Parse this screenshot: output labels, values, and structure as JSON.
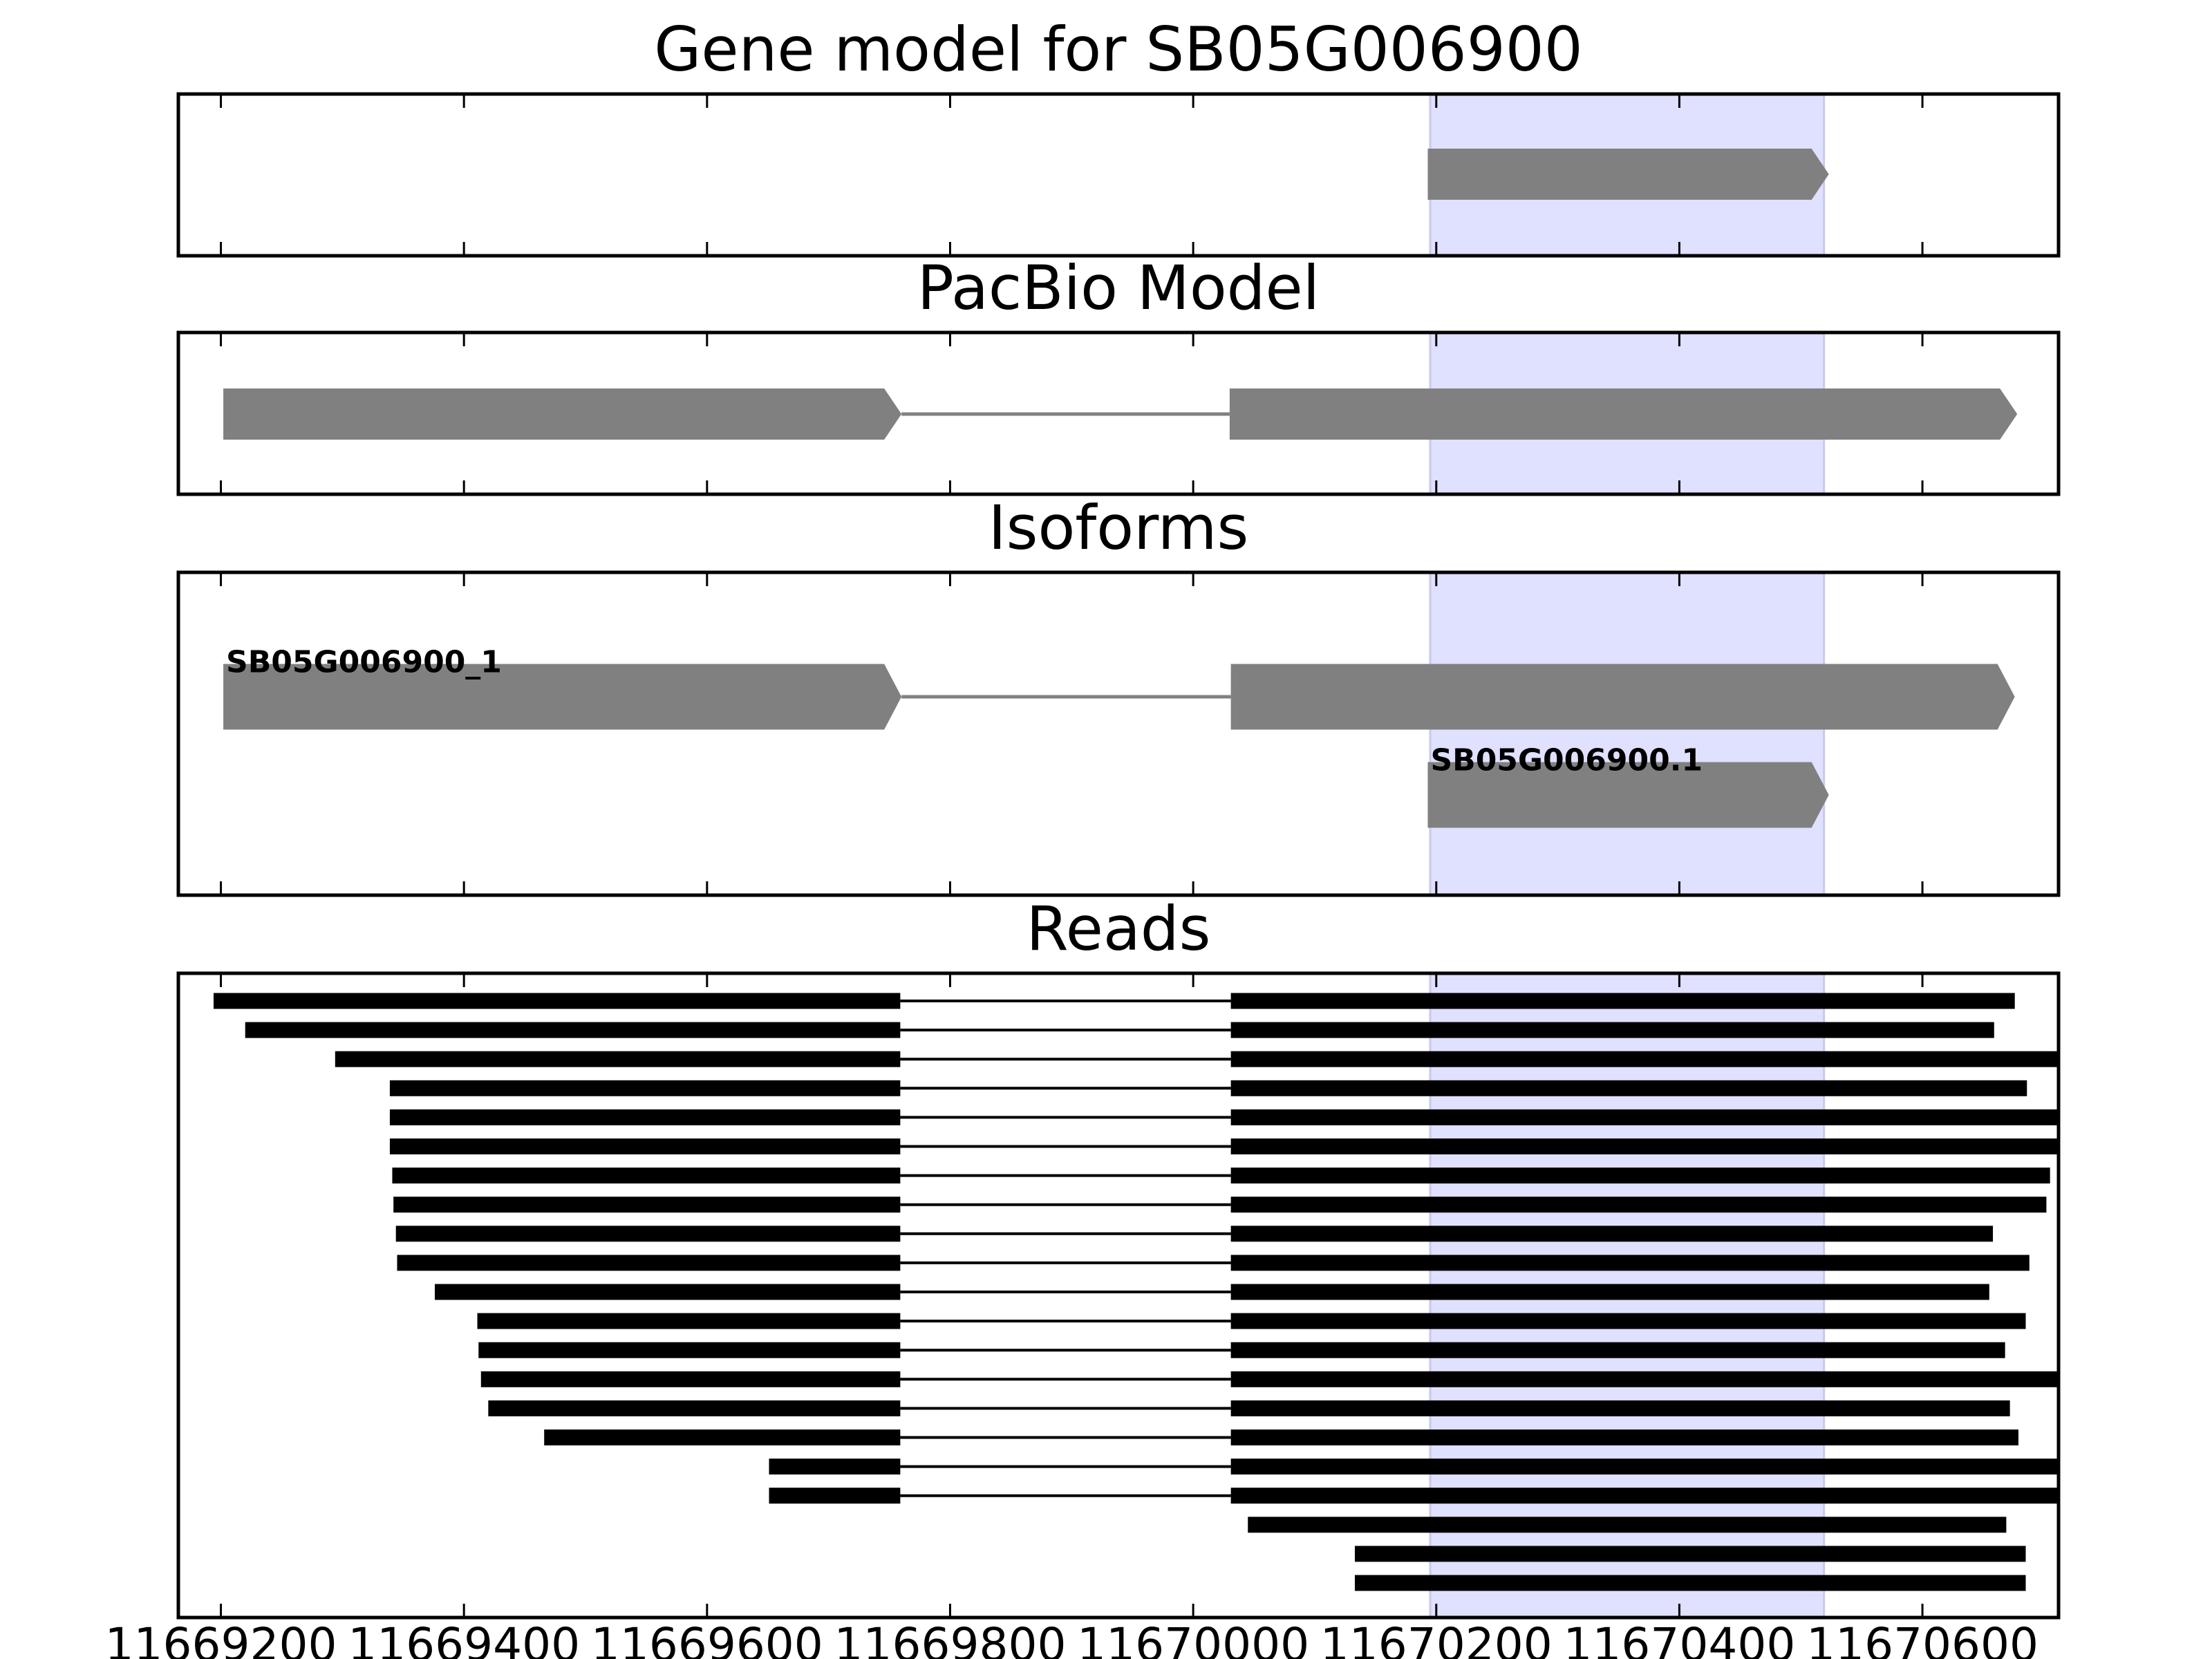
{
  "chart_data": [
    {
      "type": "gene-model",
      "title": "Gene model for SB05G006900",
      "color": "#808080",
      "strand": "+",
      "xlim": [
        11669165,
        11670712
      ],
      "xticks": [
        11669200,
        11669400,
        11669600,
        11669800,
        11670000,
        11670200,
        11670400,
        11670600
      ],
      "xtick_labels": false,
      "highlight": [
        11670195,
        11670519
      ],
      "highlight_color": "#e0e0ff",
      "features": [
        {
          "exons": [
            [
              11670193,
              11670523
            ]
          ]
        }
      ]
    },
    {
      "type": "gene-model",
      "title": "PacBio Model",
      "color": "#808080",
      "strand": "+",
      "xlim": [
        11669165,
        11670712
      ],
      "xticks": [
        11669200,
        11669400,
        11669600,
        11669800,
        11670000,
        11670200,
        11670400,
        11670600
      ],
      "xtick_labels": false,
      "highlight": [
        11670195,
        11670519
      ],
      "highlight_color": "#e0e0ff",
      "features": [
        {
          "exons": [
            [
              11669202,
              11669760
            ],
            [
              11670030,
              11670678
            ]
          ]
        }
      ]
    },
    {
      "type": "gene-model",
      "title": "Isoforms",
      "color": "#808080",
      "strand": "+",
      "xlim": [
        11669165,
        11670712
      ],
      "xticks": [
        11669200,
        11669400,
        11669600,
        11669800,
        11670000,
        11670200,
        11670400,
        11670600
      ],
      "xtick_labels": false,
      "highlight": [
        11670195,
        11670519
      ],
      "highlight_color": "#e0e0ff",
      "features": [
        {
          "label": "SB05G006900_1",
          "exons": [
            [
              11669202,
              11669760
            ],
            [
              11670031,
              11670676
            ]
          ]
        },
        {
          "label": "SB05G006900.1",
          "exons": [
            [
              11670193,
              11670523
            ]
          ]
        }
      ]
    },
    {
      "type": "reads",
      "title": "Reads",
      "color": "#000000",
      "xlim": [
        11669165,
        11670712
      ],
      "xticks": [
        11669200,
        11669400,
        11669600,
        11669800,
        11670000,
        11670200,
        11670400,
        11670600
      ],
      "xtick_labels": true,
      "highlight": [
        11670195,
        11670519
      ],
      "highlight_color": "#e0e0ff",
      "features": [
        {
          "exons": [
            [
              11669194,
              11669759
            ],
            [
              11670031,
              11670676
            ]
          ]
        },
        {
          "exons": [
            [
              11669220,
              11669759
            ],
            [
              11670031,
              11670659
            ]
          ]
        },
        {
          "exons": [
            [
              11669294,
              11669759
            ],
            [
              11670031,
              11670712
            ]
          ]
        },
        {
          "exons": [
            [
              11669339,
              11669759
            ],
            [
              11670031,
              11670686
            ]
          ]
        },
        {
          "exons": [
            [
              11669339,
              11669759
            ],
            [
              11670031,
              11670712
            ]
          ]
        },
        {
          "exons": [
            [
              11669339,
              11669759
            ],
            [
              11670031,
              11670712
            ]
          ]
        },
        {
          "exons": [
            [
              11669341,
              11669759
            ],
            [
              11670031,
              11670705
            ]
          ]
        },
        {
          "exons": [
            [
              11669342,
              11669759
            ],
            [
              11670031,
              11670702
            ]
          ]
        },
        {
          "exons": [
            [
              11669344,
              11669759
            ],
            [
              11670031,
              11670658
            ]
          ]
        },
        {
          "exons": [
            [
              11669345,
              11669759
            ],
            [
              11670031,
              11670688
            ]
          ]
        },
        {
          "exons": [
            [
              11669376,
              11669759
            ],
            [
              11670031,
              11670655
            ]
          ]
        },
        {
          "exons": [
            [
              11669411,
              11669759
            ],
            [
              11670031,
              11670685
            ]
          ]
        },
        {
          "exons": [
            [
              11669412,
              11669759
            ],
            [
              11670031,
              11670668
            ]
          ]
        },
        {
          "exons": [
            [
              11669414,
              11669759
            ],
            [
              11670031,
              11670712
            ]
          ]
        },
        {
          "exons": [
            [
              11669420,
              11669759
            ],
            [
              11670031,
              11670672
            ]
          ]
        },
        {
          "exons": [
            [
              11669466,
              11669759
            ],
            [
              11670031,
              11670679
            ]
          ]
        },
        {
          "exons": [
            [
              11669651,
              11669759
            ],
            [
              11670031,
              11670712
            ]
          ]
        },
        {
          "exons": [
            [
              11669651,
              11669759
            ],
            [
              11670031,
              11670712
            ]
          ]
        },
        {
          "exons": [
            [
              11670045,
              11670669
            ]
          ]
        },
        {
          "exons": [
            [
              11670133,
              11670685
            ]
          ]
        },
        {
          "exons": [
            [
              11670133,
              11670685
            ]
          ]
        }
      ]
    }
  ]
}
